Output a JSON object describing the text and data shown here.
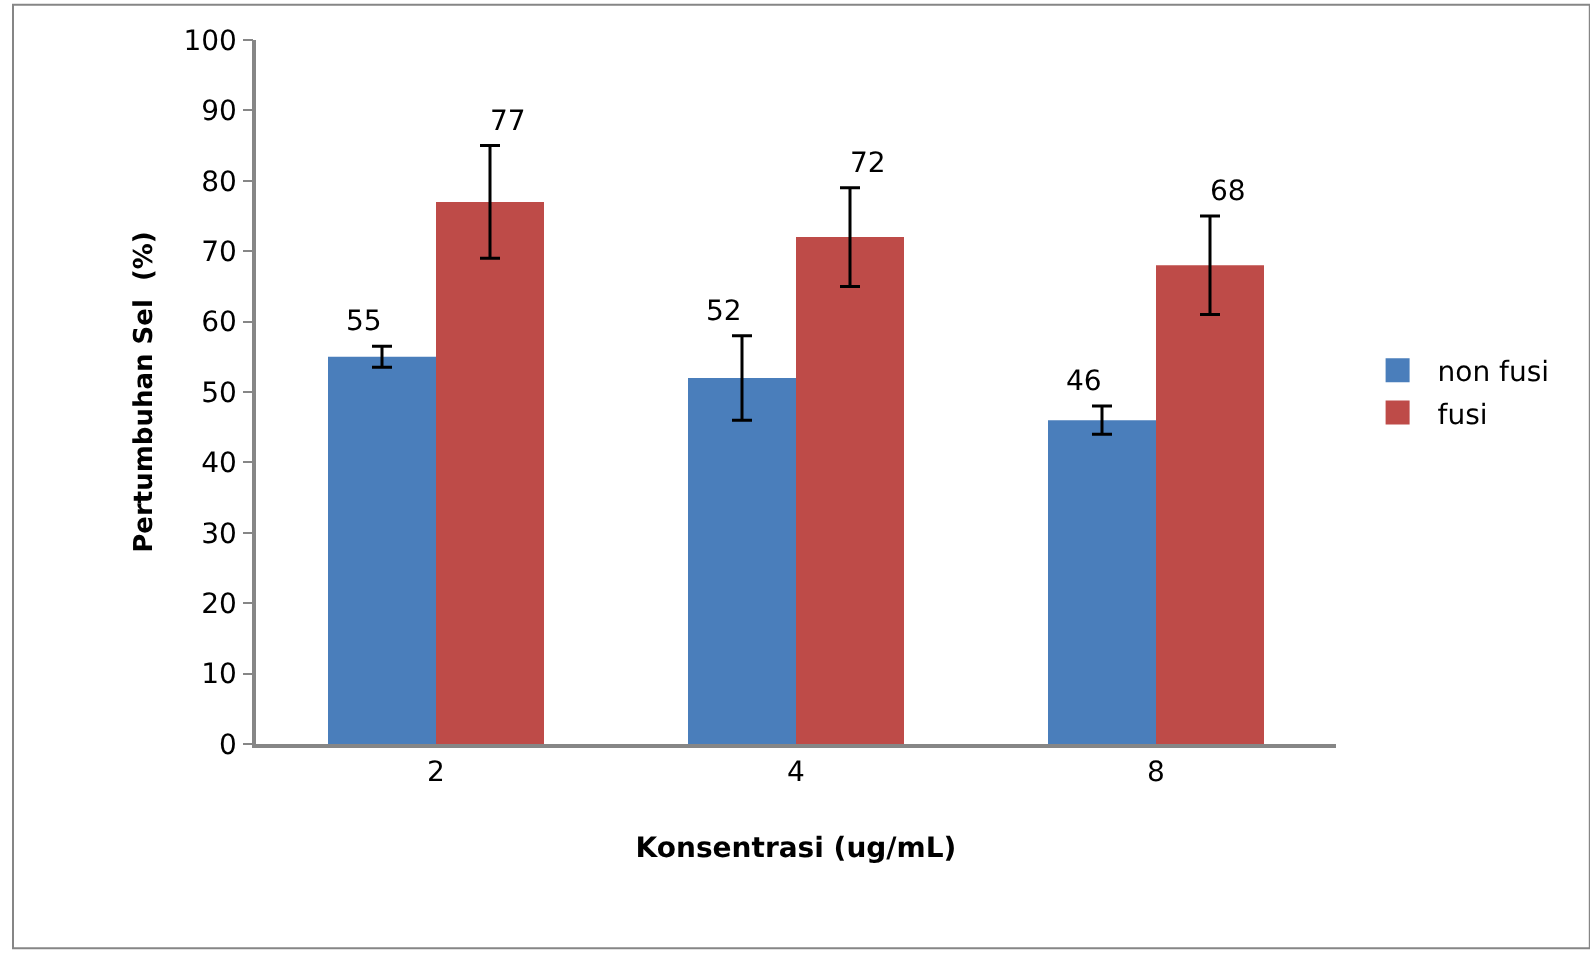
{
  "chart_data": {
    "type": "bar",
    "xlabel": "Konsentrasi (ug/mL)",
    "ylabel": "Pertumbuhan Sel  (%)",
    "categories": [
      "2",
      "4",
      "8"
    ],
    "series": [
      {
        "name": "non fusi",
        "color": "#4a7ebb",
        "values": [
          55,
          52,
          46
        ],
        "errors": [
          1.5,
          6,
          2
        ]
      },
      {
        "name": "fusi",
        "color": "#be4b48",
        "values": [
          77,
          72,
          68
        ],
        "errors": [
          8,
          7,
          7
        ]
      }
    ],
    "ylim": [
      0,
      100
    ],
    "yticks": [
      0,
      10,
      20,
      30,
      40,
      50,
      60,
      70,
      80,
      90,
      100
    ],
    "data_labels": true,
    "legend": "right"
  }
}
